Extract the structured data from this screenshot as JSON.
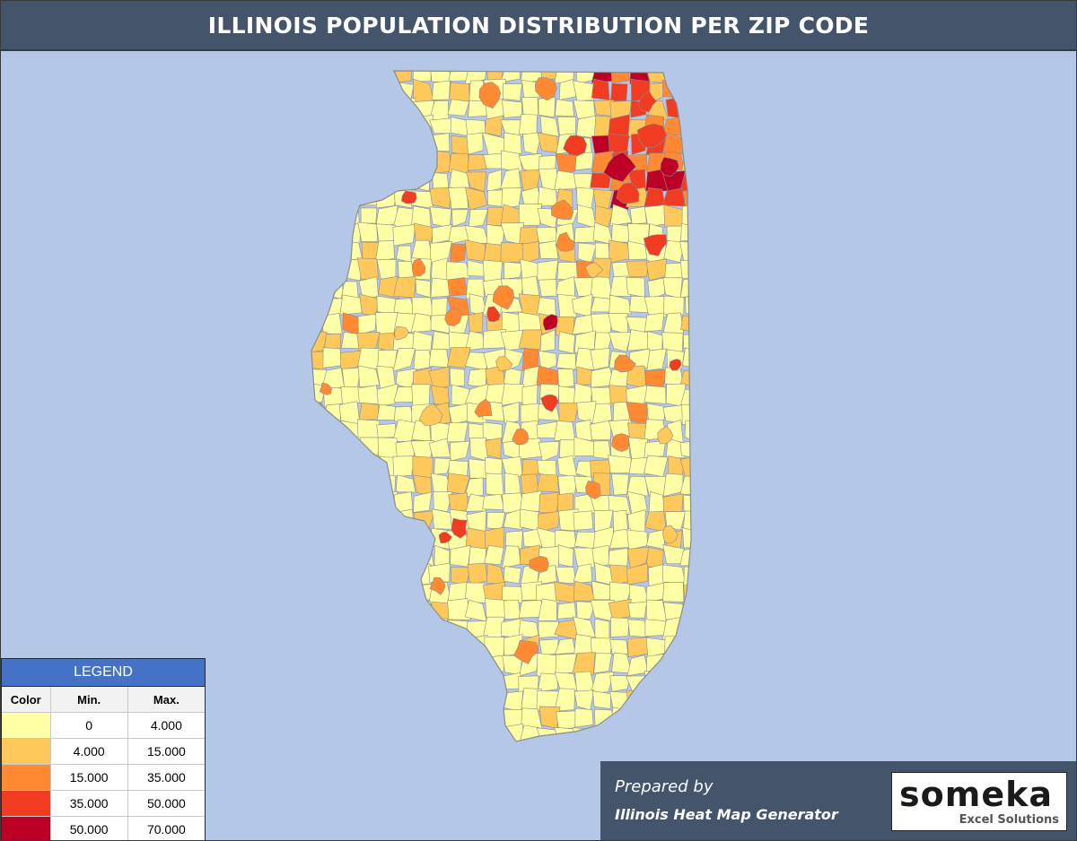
{
  "title": "ILLINOIS POPULATION DISTRIBUTION PER ZIP CODE",
  "colors": {
    "background": "#b4c7e7",
    "border": "#8c8c8c",
    "title_bar": "#44546a",
    "legend_header": "#4472c4"
  },
  "legend": {
    "title": "LEGEND",
    "headers": {
      "color": "Color",
      "min": "Min.",
      "max": "Max."
    },
    "rows": [
      {
        "color": "#ffffa6",
        "min": "0",
        "max": "4.000"
      },
      {
        "color": "#ffc85a",
        "min": "4.000",
        "max": "15.000"
      },
      {
        "color": "#ff8a33",
        "min": "15.000",
        "max": "35.000"
      },
      {
        "color": "#f23c22",
        "min": "35.000",
        "max": "50.000"
      },
      {
        "color": "#bd0026",
        "min": "50.000",
        "max": "70.000"
      }
    ]
  },
  "footer": {
    "prepared": "Prepared by",
    "generator": "Illinois Heat Map Generator",
    "logo": {
      "word": "someka",
      "sub": "Excel Solutions"
    }
  }
}
